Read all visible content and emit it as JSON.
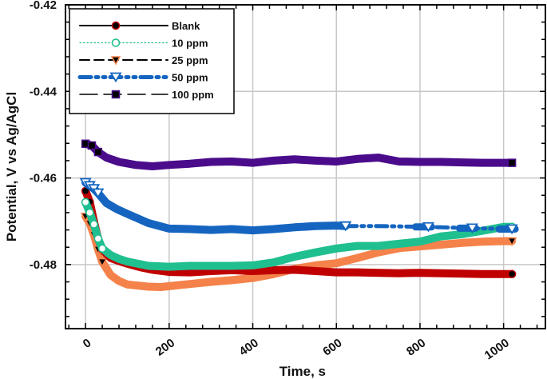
{
  "chart_data": {
    "type": "line",
    "title": "",
    "xlabel": "Time, s",
    "ylabel": "Potential, V vs Ag/AgCl",
    "xlim": [
      -48,
      1100
    ],
    "ylim": [
      -0.4948,
      -0.42
    ],
    "x_ticks": [
      0,
      200,
      400,
      600,
      800,
      1000
    ],
    "x_tick_labels": [
      "0",
      "200",
      "400",
      "600",
      "800",
      "1000"
    ],
    "x_minor_step": 40,
    "y_ticks": [
      -0.42,
      -0.44,
      -0.46,
      -0.48
    ],
    "y_tick_labels": [
      "-0.42",
      "-0.44",
      "-0.46",
      "-0.48"
    ],
    "y_minor_step": 0.004,
    "grid": true,
    "legend_position": "top-left",
    "series": [
      {
        "name": "Blank",
        "color": "#C00000",
        "marker": "circle-filled",
        "marker_color": "#000000",
        "marker_edge": "#C00000",
        "line_style": "solid",
        "x": [
          0,
          10,
          20,
          30,
          40,
          60,
          80,
          100,
          130,
          160,
          200,
          250,
          300,
          350,
          400,
          450,
          500,
          550,
          600,
          650,
          700,
          750,
          800,
          850,
          900,
          950,
          1000,
          1020
        ],
        "y": [
          -0.463,
          -0.4655,
          -0.47,
          -0.474,
          -0.4765,
          -0.4785,
          -0.4792,
          -0.4798,
          -0.4806,
          -0.4812,
          -0.4817,
          -0.4818,
          -0.4815,
          -0.4813,
          -0.4815,
          -0.4813,
          -0.4812,
          -0.4815,
          -0.4818,
          -0.4818,
          -0.4819,
          -0.482,
          -0.4819,
          -0.482,
          -0.4821,
          -0.4822,
          -0.4822,
          -0.4822
        ]
      },
      {
        "name": "10 ppm",
        "color": "#1FBF8F",
        "marker": "circle-open",
        "marker_color": "#1FBF8F",
        "line_style": "dotted",
        "x": [
          0,
          10,
          20,
          30,
          40,
          60,
          80,
          100,
          150,
          200,
          250,
          300,
          350,
          400,
          450,
          500,
          550,
          600,
          650,
          700,
          750,
          800,
          850,
          900,
          950,
          1000,
          1020
        ],
        "y": [
          -0.4656,
          -0.468,
          -0.4707,
          -0.474,
          -0.4763,
          -0.4778,
          -0.4787,
          -0.4793,
          -0.4803,
          -0.4805,
          -0.4803,
          -0.4803,
          -0.4803,
          -0.4802,
          -0.4795,
          -0.4782,
          -0.4772,
          -0.4763,
          -0.4757,
          -0.4757,
          -0.4752,
          -0.4747,
          -0.4735,
          -0.473,
          -0.4722,
          -0.4713,
          -0.4713
        ]
      },
      {
        "name": "25 ppm",
        "color": "#F4824A",
        "marker": "triangle-down-filled",
        "marker_color": "#000000",
        "marker_edge": "#F4824A",
        "line_style": "dashed",
        "x": [
          0,
          10,
          20,
          30,
          40,
          60,
          80,
          100,
          150,
          180,
          200,
          250,
          300,
          350,
          400,
          450,
          500,
          550,
          600,
          650,
          700,
          750,
          800,
          850,
          900,
          950,
          1000,
          1020
        ],
        "y": [
          -0.4689,
          -0.4705,
          -0.4731,
          -0.4765,
          -0.4794,
          -0.4824,
          -0.4838,
          -0.4846,
          -0.4851,
          -0.4852,
          -0.485,
          -0.4845,
          -0.484,
          -0.4836,
          -0.4831,
          -0.4822,
          -0.481,
          -0.4802,
          -0.4797,
          -0.4785,
          -0.4772,
          -0.4762,
          -0.4758,
          -0.4754,
          -0.475,
          -0.4747,
          -0.4746,
          -0.4746
        ]
      },
      {
        "name": "50 ppm",
        "color": "#1565C0",
        "marker": "triangle-down-open",
        "marker_color": "#1565C0",
        "line_style": "dash-dot-dot",
        "x": [
          0,
          10,
          20,
          30,
          50,
          75,
          100,
          150,
          200,
          250,
          300,
          350,
          400,
          450,
          500,
          550,
          600,
          622,
          700,
          820,
          925,
          1020
        ],
        "y": [
          -0.4611,
          -0.4618,
          -0.4625,
          -0.4635,
          -0.4658,
          -0.4672,
          -0.4683,
          -0.4704,
          -0.4717,
          -0.4718,
          -0.472,
          -0.4718,
          -0.4721,
          -0.4718,
          -0.4714,
          -0.4711,
          -0.471,
          -0.4711,
          -0.4711,
          -0.4713,
          -0.4716,
          -0.4718
        ]
      },
      {
        "name": "100 ppm",
        "color": "#4B0C8C",
        "marker": "square-filled",
        "marker_color": "#000000",
        "marker_edge": "#4B0C8C",
        "line_style": "long-dash",
        "x": [
          0,
          15,
          30,
          50,
          80,
          120,
          160,
          200,
          250,
          300,
          350,
          400,
          450,
          500,
          550,
          600,
          650,
          700,
          750,
          800,
          850,
          900,
          950,
          1000,
          1020
        ],
        "y": [
          -0.4521,
          -0.4525,
          -0.454,
          -0.4553,
          -0.4563,
          -0.457,
          -0.4573,
          -0.457,
          -0.4567,
          -0.4563,
          -0.4562,
          -0.4565,
          -0.456,
          -0.4557,
          -0.456,
          -0.4562,
          -0.4556,
          -0.4553,
          -0.4562,
          -0.4563,
          -0.4563,
          -0.4564,
          -0.4565,
          -0.4565,
          -0.4565
        ]
      }
    ]
  }
}
